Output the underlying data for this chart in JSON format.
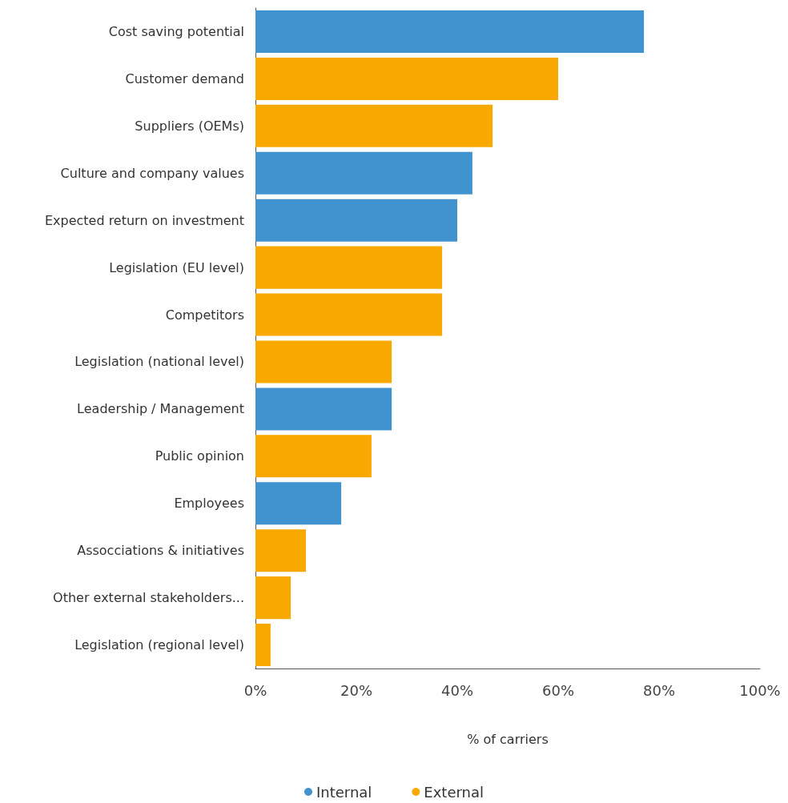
{
  "chart_data": {
    "type": "bar",
    "orientation": "horizontal",
    "stacked": true,
    "xlabel": "% of carriers",
    "categories": [
      "Cost saving potential",
      "Customer demand",
      "Suppliers (OEMs)",
      "Culture and company values",
      "Expected return on investment",
      "Legislation (EU level)",
      "Competitors",
      "Legislation (national level)",
      "Leadership / Management",
      "Public opinion",
      "Employees",
      "Assocciations & initiatives",
      "Other external stakeholders...",
      "Legislation (regional level)"
    ],
    "series": [
      {
        "name": "Internal",
        "color": "#4193d0",
        "values": [
          77,
          null,
          null,
          43,
          40,
          null,
          null,
          null,
          27,
          null,
          17,
          null,
          null,
          null
        ]
      },
      {
        "name": "External",
        "color": "#f9a800",
        "values": [
          null,
          60,
          47,
          null,
          null,
          37,
          37,
          27,
          null,
          23,
          null,
          10,
          7,
          3
        ]
      }
    ],
    "xlim": [
      0,
      100
    ],
    "xticks": [
      {
        "value": 0,
        "label": "0%"
      },
      {
        "value": 20,
        "label": "20%"
      },
      {
        "value": 40,
        "label": "40%"
      },
      {
        "value": 60,
        "label": "60%"
      },
      {
        "value": 80,
        "label": "80%"
      },
      {
        "value": 100,
        "label": "100%"
      }
    ],
    "grid": false,
    "legend": "bottom",
    "marker": "circle"
  }
}
